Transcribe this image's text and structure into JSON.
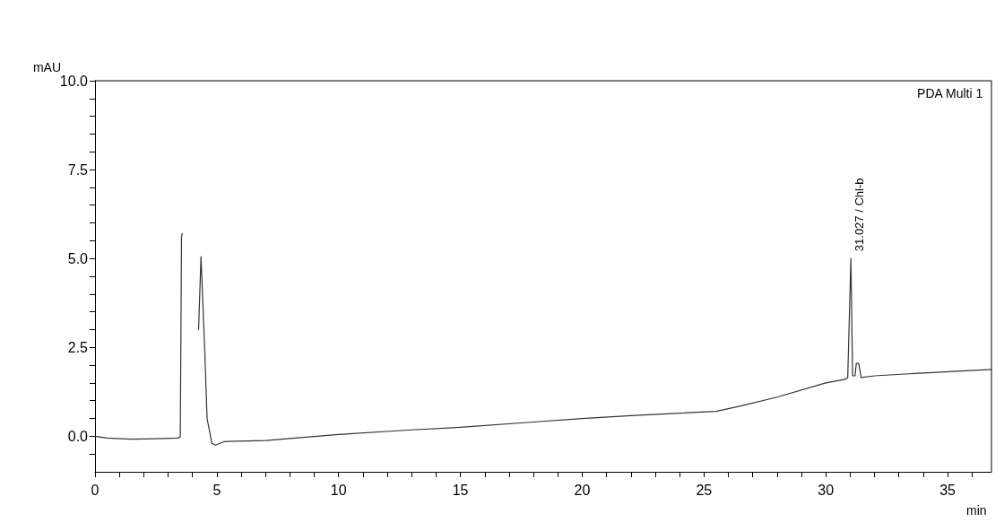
{
  "chart_data": {
    "type": "line",
    "title": "PDA Multi 1",
    "xlabel": "min",
    "ylabel": "mAU",
    "xlim": [
      0,
      36.8
    ],
    "ylim": [
      -1,
      10
    ],
    "xticks": [
      0,
      {
        "value": 1,
        "label": null
      },
      {
        "value": 2,
        "label": null
      },
      {
        "value": 3,
        "label": null
      },
      {
        "value": 4,
        "label": null
      },
      5,
      {
        "value": 6,
        "label": null
      },
      {
        "value": 7,
        "label": null
      },
      {
        "value": 8,
        "label": null
      },
      {
        "value": 9,
        "label": null
      },
      10,
      {
        "value": 11,
        "label": null
      },
      {
        "value": 12,
        "label": null
      },
      {
        "value": 13,
        "label": null
      },
      {
        "value": 14,
        "label": null
      },
      15,
      {
        "value": 16,
        "label": null
      },
      {
        "value": 17,
        "label": null
      },
      {
        "value": 18,
        "label": null
      },
      {
        "value": 19,
        "label": null
      },
      20,
      {
        "value": 21,
        "label": null
      },
      {
        "value": 22,
        "label": null
      },
      {
        "value": 23,
        "label": null
      },
      {
        "value": 24,
        "label": null
      },
      25,
      {
        "value": 26,
        "label": null
      },
      {
        "value": 27,
        "label": null
      },
      {
        "value": 28,
        "label": null
      },
      {
        "value": 29,
        "label": null
      },
      30,
      {
        "value": 31,
        "label": null
      },
      {
        "value": 32,
        "label": null
      },
      {
        "value": 33,
        "label": null
      },
      {
        "value": 34,
        "label": null
      },
      35,
      {
        "value": 36,
        "label": null
      }
    ],
    "yticks": [
      {
        "value": -0.5,
        "label": null
      },
      {
        "value": 0,
        "label": "0.0"
      },
      {
        "value": 0.5,
        "label": null
      },
      {
        "value": 1,
        "label": null
      },
      {
        "value": 1.5,
        "label": null
      },
      {
        "value": 2,
        "label": null
      },
      {
        "value": 2.5,
        "label": "2.5"
      },
      {
        "value": 3,
        "label": null
      },
      {
        "value": 3.5,
        "label": null
      },
      {
        "value": 4,
        "label": null
      },
      {
        "value": 4.5,
        "label": null
      },
      {
        "value": 5,
        "label": "5.0"
      },
      {
        "value": 5.5,
        "label": null
      },
      {
        "value": 6,
        "label": null
      },
      {
        "value": 6.5,
        "label": null
      },
      {
        "value": 7,
        "label": null
      },
      {
        "value": 7.5,
        "label": "7.5"
      },
      {
        "value": 8,
        "label": null
      },
      {
        "value": 8.5,
        "label": null
      },
      {
        "value": 9,
        "label": null
      },
      {
        "value": 9.5,
        "label": null
      },
      {
        "value": 10,
        "label": "10.0"
      }
    ],
    "grid": false,
    "marker": "none",
    "line_style": "solid",
    "annotations": [
      {
        "text": "31.027 / Chl-b",
        "x": 31.027,
        "y": 5.0
      }
    ],
    "series": [
      {
        "color": "#333333",
        "x": [
          0,
          0.5,
          1.5,
          2.5,
          3.4,
          3.5,
          3.55,
          3.58,
          3.72,
          3.78,
          3.83,
          3.97,
          4.03,
          4.13,
          4.25,
          4.35,
          4.5,
          4.6,
          4.8,
          4.95,
          5.3,
          7,
          10,
          13,
          15,
          18,
          20,
          22,
          24,
          25.5,
          26.5,
          28,
          30,
          30.8,
          30.9,
          31.03,
          31.1,
          31.2,
          31.25,
          31.35,
          31.45,
          32,
          34,
          36.8
        ],
        "values": [
          0,
          -0.05,
          -0.08,
          -0.07,
          -0.05,
          -0.02,
          5.6,
          5.7,
          null,
          null,
          null,
          null,
          null,
          null,
          3.0,
          5.05,
          2.5,
          0.5,
          -0.2,
          -0.25,
          -0.15,
          -0.12,
          0.05,
          0.18,
          0.25,
          0.4,
          0.5,
          0.58,
          0.65,
          0.7,
          0.85,
          1.1,
          1.5,
          1.6,
          1.65,
          5.0,
          1.7,
          1.7,
          2.05,
          2.05,
          1.65,
          1.7,
          1.78,
          1.88
        ]
      }
    ]
  }
}
